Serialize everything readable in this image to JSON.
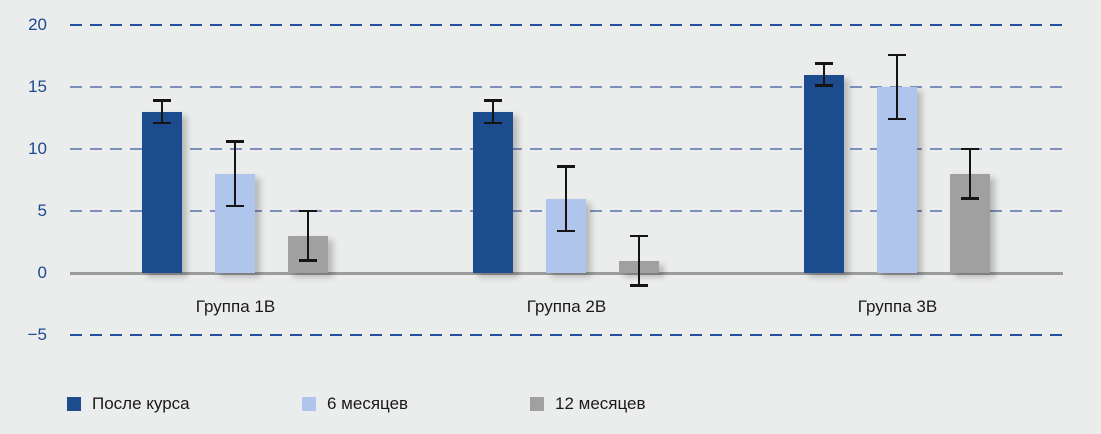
{
  "chart_data": {
    "type": "bar",
    "title": "",
    "categories": [
      "Группа 1В",
      "Группа 2В",
      "Группа 3В"
    ],
    "series": [
      {
        "name": "После курса",
        "color": "#1C4B8E",
        "values": [
          13,
          13,
          16
        ],
        "error": [
          1,
          1,
          1
        ]
      },
      {
        "name": "6 месяцев",
        "color": "#AFC5EB",
        "values": [
          8,
          6,
          15
        ],
        "error": [
          2.7,
          2.7,
          2.7
        ]
      },
      {
        "name": "12 месяцев",
        "color": "#A0A0A0",
        "values": [
          3,
          1,
          8
        ],
        "error": [
          2.1,
          2.1,
          2.1
        ]
      }
    ],
    "error_bars": true,
    "y_ticks": [
      20,
      15,
      10,
      5,
      0,
      -5
    ],
    "y_tick_labels": [
      "20",
      "15",
      "10",
      "5",
      "0",
      "−5"
    ],
    "ylim": [
      -5,
      20
    ],
    "grid": "horizontal dashed, solid gray zero baseline",
    "legend_position": "bottom",
    "colors": {
      "background": "#EBECEC",
      "grid_outer": "#24509B",
      "grid_inner": "#7D90BC",
      "zero_line": "#9C9C9C",
      "tick_label": "#1B4A8F",
      "text": "#1A1A1A",
      "error_bar": "#151515"
    }
  },
  "legend": {
    "items": [
      {
        "label": "После курса"
      },
      {
        "label": "6 месяцев"
      },
      {
        "label": "12 месяцев"
      }
    ]
  }
}
